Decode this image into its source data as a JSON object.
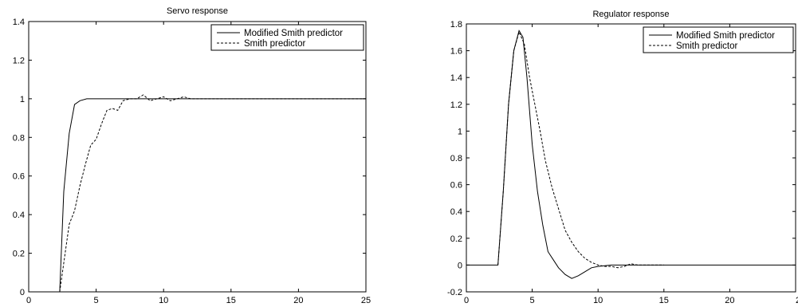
{
  "chart_data": [
    {
      "type": "line",
      "title": "Servo response",
      "xlabel": "",
      "ylabel": "",
      "xlim": [
        0,
        25
      ],
      "ylim": [
        0,
        1.4
      ],
      "xticks": [
        "0",
        "5",
        "10",
        "15",
        "20",
        "25"
      ],
      "yticks": [
        "0",
        "0.2",
        "0.4",
        "0.6",
        "0.8",
        "1",
        "1.2",
        "1.4"
      ],
      "grid": false,
      "legend_position": "top-right",
      "series": [
        {
          "name": "Modified Smith predictor",
          "style": "solid",
          "color": "#000000",
          "x": [
            2.0,
            2.3,
            2.6,
            3.0,
            3.4,
            3.8,
            4.3,
            5,
            10,
            15,
            20,
            25
          ],
          "y": [
            0,
            0,
            0.52,
            0.82,
            0.97,
            0.99,
            1.0,
            1.0,
            1.0,
            1.0,
            1.0,
            1.0
          ]
        },
        {
          "name": "Smith predictor",
          "style": "dashed",
          "color": "#000000",
          "x": [
            2.0,
            2.3,
            2.7,
            3.0,
            3.4,
            3.8,
            4.2,
            4.6,
            5.0,
            5.4,
            5.8,
            6.2,
            6.6,
            7.0,
            7.5,
            8.0,
            8.5,
            9.0,
            9.5,
            10.0,
            10.5,
            11.0,
            11.5,
            12.0,
            13.0,
            14.0,
            15.0,
            16.0,
            17.0,
            18.0,
            19.0,
            20.0,
            21.0,
            22.0,
            25.0
          ],
          "y": [
            0,
            0,
            0.2,
            0.35,
            0.42,
            0.55,
            0.66,
            0.76,
            0.79,
            0.87,
            0.94,
            0.95,
            0.94,
            0.99,
            1.0,
            1.0,
            1.02,
            0.99,
            1.0,
            1.01,
            0.99,
            1.0,
            1.01,
            1.0,
            1.0,
            1.0,
            1.0,
            1.0,
            1.0,
            1.0,
            1.0,
            1.0,
            1.0,
            1.0,
            1.0
          ]
        }
      ]
    },
    {
      "type": "line",
      "title": "Regulator response",
      "xlabel": "",
      "ylabel": "",
      "xlim": [
        0,
        25
      ],
      "ylim": [
        -0.2,
        1.8
      ],
      "xticks": [
        "0",
        "5",
        "10",
        "15",
        "20",
        "25"
      ],
      "yticks": [
        "-0.2",
        "0",
        "0.2",
        "0.4",
        "0.6",
        "0.8",
        "1",
        "1.2",
        "1.4",
        "1.6",
        "1.8"
      ],
      "grid": false,
      "legend_position": "top-right",
      "series": [
        {
          "name": "Modified Smith predictor",
          "style": "solid",
          "color": "#000000",
          "x": [
            0,
            2.4,
            2.4,
            2.8,
            3.2,
            3.6,
            4.0,
            4.3,
            4.6,
            5.0,
            5.4,
            5.8,
            6.2,
            6.6,
            7.0,
            7.5,
            8.0,
            8.5,
            9.0,
            9.5,
            10.0,
            11.0,
            12.0,
            13.0,
            15.0,
            25.0
          ],
          "y": [
            0,
            0,
            0,
            0.55,
            1.2,
            1.6,
            1.75,
            1.7,
            1.4,
            0.9,
            0.55,
            0.3,
            0.1,
            0.04,
            -0.02,
            -0.07,
            -0.1,
            -0.08,
            -0.05,
            -0.02,
            -0.01,
            0,
            0,
            0,
            0,
            0
          ]
        },
        {
          "name": "Smith predictor",
          "style": "dashed",
          "color": "#000000",
          "x": [
            2.4,
            2.8,
            3.2,
            3.6,
            4.0,
            4.4,
            4.8,
            5.2,
            5.6,
            6.0,
            6.5,
            7.0,
            7.5,
            8.0,
            8.5,
            9.0,
            9.5,
            10.0,
            10.5,
            11.0,
            11.5,
            12.0,
            12.5,
            13.0,
            14.0,
            15.0
          ],
          "y": [
            0,
            0.55,
            1.2,
            1.6,
            1.74,
            1.65,
            1.4,
            1.2,
            1.0,
            0.78,
            0.58,
            0.42,
            0.26,
            0.17,
            0.1,
            0.05,
            0.02,
            0.0,
            -0.01,
            -0.01,
            -0.02,
            -0.01,
            0.01,
            0.0,
            0.0,
            0.0
          ]
        }
      ]
    }
  ]
}
